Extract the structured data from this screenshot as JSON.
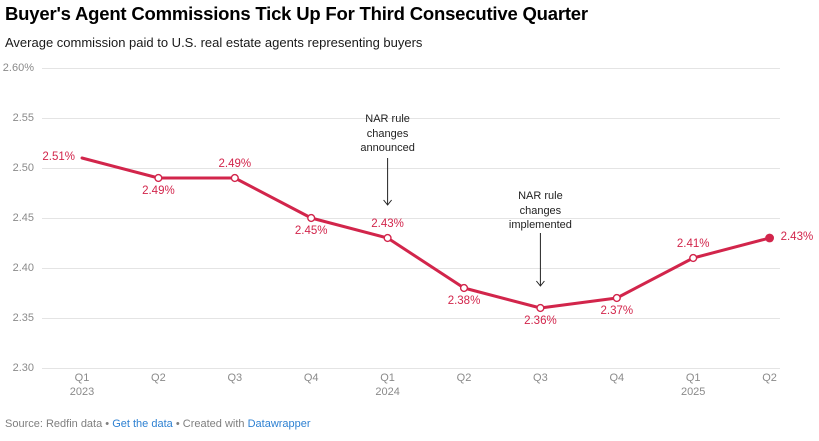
{
  "header": {
    "title": "Buyer's Agent Commissions Tick Up For Third Consecutive Quarter",
    "subtitle": "Average commission paid to U.S. real estate agents representing buyers"
  },
  "colors": {
    "line": "#d2254b",
    "data_label": "#d2254b",
    "grid": "#e4e4e4",
    "axis_text": "#8a8a8a",
    "annotation_text": "#222222",
    "arrow": "#222222",
    "footer_text": "#7f7f7f",
    "link": "#2e81d2",
    "title": "#000000",
    "subtitle": "#1a1a1a"
  },
  "chart_data": {
    "type": "line",
    "title": "Buyer's Agent Commissions Tick Up For Third Consecutive Quarter",
    "subtitle": "Average commission paid to U.S. real estate agents representing buyers",
    "x": [
      "Q1 2023",
      "Q2 2023",
      "Q3 2023",
      "Q4 2023",
      "Q1 2024",
      "Q2 2024",
      "Q3 2024",
      "Q4 2024",
      "Q1 2025",
      "Q2 2025"
    ],
    "values": [
      2.51,
      2.49,
      2.49,
      2.45,
      2.43,
      2.38,
      2.36,
      2.37,
      2.41,
      2.43
    ],
    "point_labels": [
      "2.51%",
      "2.49%",
      "2.49%",
      "2.45%",
      "2.43%",
      "2.38%",
      "2.36%",
      "2.37%",
      "2.41%",
      "2.43%"
    ],
    "label_positions": [
      "left",
      "below",
      "above",
      "below",
      "above",
      "below",
      "below",
      "below",
      "above",
      "right"
    ],
    "markers": [
      "none",
      "open",
      "open",
      "open",
      "open",
      "open",
      "open",
      "open",
      "open",
      "filled"
    ],
    "ylim": [
      2.3,
      2.6
    ],
    "y_ticks": [
      {
        "v": 2.6,
        "label": "2.60%"
      },
      {
        "v": 2.55,
        "label": "2.55"
      },
      {
        "v": 2.5,
        "label": "2.50"
      },
      {
        "v": 2.45,
        "label": "2.45"
      },
      {
        "v": 2.4,
        "label": "2.40"
      },
      {
        "v": 2.35,
        "label": "2.35"
      },
      {
        "v": 2.3,
        "label": "2.30"
      }
    ],
    "x_ticks": [
      {
        "q": "Q1",
        "year": "2023"
      },
      {
        "q": "Q2",
        "year": ""
      },
      {
        "q": "Q3",
        "year": ""
      },
      {
        "q": "Q4",
        "year": ""
      },
      {
        "q": "Q1",
        "year": "2024"
      },
      {
        "q": "Q2",
        "year": ""
      },
      {
        "q": "Q3",
        "year": ""
      },
      {
        "q": "Q4",
        "year": ""
      },
      {
        "q": "Q1",
        "year": "2025"
      },
      {
        "q": "Q2",
        "year": ""
      }
    ],
    "annotations": [
      {
        "lines": [
          "NAR rule",
          "changes",
          "announced"
        ],
        "target_index": 4
      },
      {
        "lines": [
          "NAR rule",
          "changes",
          "implemented"
        ],
        "target_index": 6
      }
    ],
    "grid": true,
    "legend": "none"
  },
  "footer": {
    "source": "Source: Redfin data",
    "sep": "•",
    "get_data_label": "Get the data",
    "created_with": "Created with",
    "datawrapper_label": "Datawrapper"
  }
}
